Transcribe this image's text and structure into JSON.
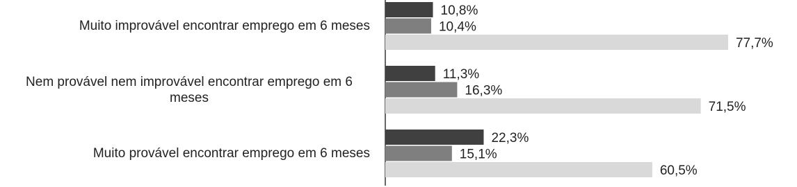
{
  "chart_data": {
    "type": "hbar",
    "categories": [
      "Muito improvável encontrar emprego em 6 meses",
      "Nem provável nem improvável encontrar emprego em 6 meses",
      "Muito provável encontrar emprego em 6 meses"
    ],
    "series": [
      {
        "color": "#404040",
        "values": [
          10.8,
          11.3,
          22.3
        ],
        "value_labels": [
          "10,8%",
          "11,3%",
          "22,3%"
        ]
      },
      {
        "color": "#7f7f7f",
        "values": [
          10.4,
          16.3,
          15.1
        ],
        "value_labels": [
          "10,4%",
          "16,3%",
          "15,1%"
        ]
      },
      {
        "color": "#d9d9d9",
        "values": [
          77.7,
          71.5,
          60.5
        ],
        "value_labels": [
          "77,7%",
          "71,5%",
          "60,5%"
        ]
      }
    ],
    "xlim": [
      0,
      90
    ]
  }
}
